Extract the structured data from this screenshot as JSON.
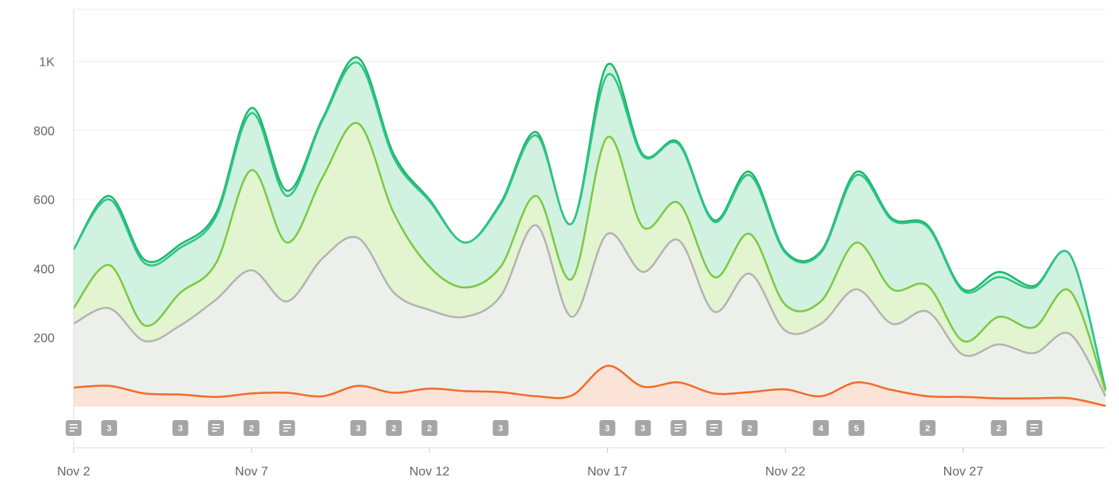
{
  "colors": {
    "green": "#1db76b",
    "teal": "#2ec48a",
    "lime": "#7ac943",
    "gray": "#b3b3b3",
    "orange": "#f26b2a",
    "marker": "#a6a6a6",
    "grid": "#eeeeee",
    "axis": "#dddddd"
  },
  "chart_data": {
    "type": "area",
    "x": [
      2,
      3,
      4,
      5,
      6,
      7,
      8,
      9,
      10,
      11,
      12,
      13,
      14,
      15,
      16,
      17,
      18,
      19,
      20,
      21,
      22,
      23,
      24,
      25,
      26,
      27,
      28,
      29,
      30,
      31
    ],
    "xticks": [
      {
        "value": 2,
        "label": "Nov 2"
      },
      {
        "value": 7,
        "label": "Nov 7"
      },
      {
        "value": 12,
        "label": "Nov 12"
      },
      {
        "value": 17,
        "label": "Nov 17"
      },
      {
        "value": 22,
        "label": "Nov 22"
      },
      {
        "value": 27,
        "label": "Nov 27"
      }
    ],
    "yticks": [
      {
        "value": 200,
        "label": "200"
      },
      {
        "value": 400,
        "label": "400"
      },
      {
        "value": 600,
        "label": "600"
      },
      {
        "value": 800,
        "label": "800"
      },
      {
        "value": 1000,
        "label": "1K"
      }
    ],
    "ylim": [
      0,
      1150
    ],
    "xlim": [
      2,
      31
    ],
    "grid": true,
    "series": [
      {
        "color": "#1db76b",
        "fill": "#c9f0da",
        "values": [
          455,
          610,
          425,
          470,
          560,
          865,
          625,
          835,
          1010,
          730,
          600,
          475,
          590,
          795,
          530,
          990,
          730,
          765,
          540,
          680,
          450,
          450,
          680,
          545,
          525,
          340,
          390,
          350,
          440,
          50
        ]
      },
      {
        "color": "#2ec48a",
        "fill": "none",
        "values": [
          455,
          600,
          415,
          460,
          550,
          850,
          610,
          830,
          995,
          720,
          595,
          475,
          585,
          785,
          530,
          960,
          725,
          760,
          535,
          670,
          445,
          445,
          670,
          540,
          520,
          335,
          375,
          345,
          440,
          50
        ]
      },
      {
        "color": "#7ac943",
        "fill": "#e6f5cc",
        "values": [
          285,
          410,
          235,
          330,
          415,
          685,
          475,
          665,
          820,
          560,
          405,
          345,
          405,
          610,
          370,
          780,
          520,
          590,
          375,
          500,
          295,
          305,
          475,
          340,
          350,
          190,
          260,
          230,
          335,
          45
        ]
      },
      {
        "color": "#b3b3b3",
        "fill": "#eeeeee",
        "values": [
          240,
          285,
          190,
          235,
          310,
          395,
          305,
          430,
          488,
          330,
          280,
          260,
          320,
          525,
          260,
          500,
          390,
          482,
          275,
          385,
          220,
          240,
          340,
          240,
          275,
          150,
          180,
          155,
          210,
          30
        ]
      },
      {
        "color": "#f26b2a",
        "fill": "#fde0d3",
        "values": [
          55,
          60,
          38,
          35,
          28,
          38,
          40,
          30,
          60,
          40,
          52,
          45,
          42,
          30,
          32,
          118,
          58,
          70,
          38,
          42,
          50,
          30,
          70,
          48,
          30,
          28,
          24,
          24,
          24,
          2
        ]
      }
    ],
    "markers": [
      {
        "day": 2,
        "label": "≡"
      },
      {
        "day": 3,
        "label": "3"
      },
      {
        "day": 5,
        "label": "3"
      },
      {
        "day": 6,
        "label": "≡"
      },
      {
        "day": 7,
        "label": "2"
      },
      {
        "day": 8,
        "label": "≡"
      },
      {
        "day": 10,
        "label": "3"
      },
      {
        "day": 11,
        "label": "2"
      },
      {
        "day": 12,
        "label": "2"
      },
      {
        "day": 14,
        "label": "3"
      },
      {
        "day": 17,
        "label": "3"
      },
      {
        "day": 18,
        "label": "3"
      },
      {
        "day": 19,
        "label": "≡"
      },
      {
        "day": 20,
        "label": "≡"
      },
      {
        "day": 21,
        "label": "2"
      },
      {
        "day": 23,
        "label": "4"
      },
      {
        "day": 24,
        "label": "5"
      },
      {
        "day": 26,
        "label": "2"
      },
      {
        "day": 28,
        "label": "2"
      },
      {
        "day": 29,
        "label": "≡"
      }
    ]
  }
}
